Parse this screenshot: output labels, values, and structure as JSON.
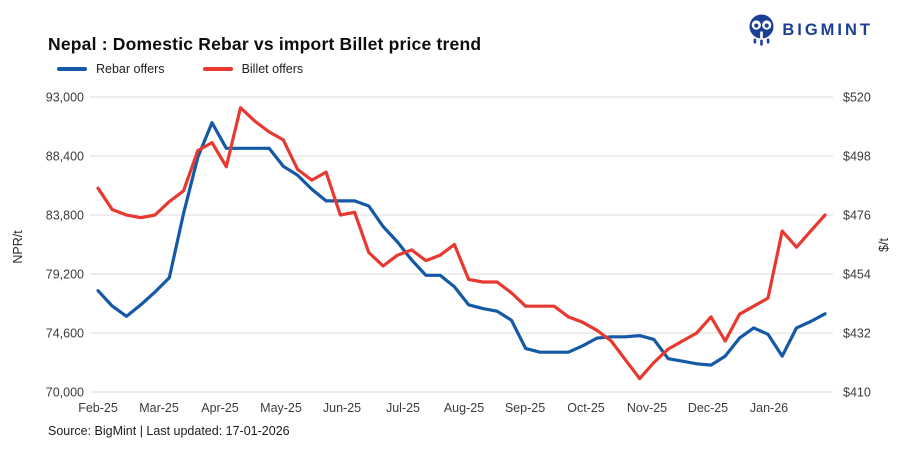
{
  "header": {
    "title": "Nepal : Domestic Rebar vs import Billet price trend",
    "logo_text": "BIGMINT"
  },
  "footer": {
    "source": "Source: BigMint | Last updated: 17-01-2026"
  },
  "colors": {
    "rebar_line": "#1459a6",
    "billet_line": "#e73930",
    "logo_navy": "#1c3f94",
    "gridline": "#e2e2e2",
    "tick_text": "#3c3c3c"
  },
  "chart_data": {
    "type": "line",
    "title": "Nepal : Domestic Rebar vs import Billet price trend",
    "x_labels": [
      "Feb-25",
      "Mar-25",
      "Apr-25",
      "May-25",
      "Jun-25",
      "Jul-25",
      "Aug-25",
      "Sep-25",
      "Oct-25",
      "Nov-25",
      "Dec-25",
      "Jan-26"
    ],
    "x_unit": "weekly points, Feb-2025 through mid-Jan-2026",
    "grid": "horizontal only",
    "legend_position": "top-left",
    "axes": {
      "left": {
        "label": "NPR/t",
        "min": 70000,
        "max": 93000,
        "ticks": [
          "93,000",
          "88,400",
          "83,800",
          "79,200",
          "74,600",
          "70,000"
        ]
      },
      "right": {
        "label": "$/t",
        "min": 410,
        "max": 520,
        "ticks": [
          "$520",
          "$498",
          "$476",
          "$454",
          "$432",
          "$410"
        ]
      }
    },
    "series": [
      {
        "name": "Rebar offers",
        "axis": "left",
        "color": "#1459a6",
        "values": [
          77900,
          76700,
          75900,
          76800,
          77800,
          78900,
          83900,
          88300,
          91000,
          89000,
          89000,
          89000,
          89000,
          87600,
          86900,
          85800,
          84900,
          84900,
          84900,
          84500,
          82900,
          81700,
          80300,
          79100,
          79100,
          78200,
          76800,
          76500,
          76300,
          75600,
          73400,
          73100,
          73100,
          73100,
          73600,
          74200,
          74300,
          74300,
          74400,
          74100,
          72600,
          72400,
          72200,
          72100,
          72800,
          74200,
          75000,
          74500,
          72800,
          75000,
          75500,
          76100
        ]
      },
      {
        "name": "Billet offers",
        "axis": "right",
        "color": "#e73930",
        "values": [
          486,
          478,
          476,
          475,
          476,
          481,
          485,
          500,
          503,
          494,
          516,
          511,
          507,
          504,
          493,
          489,
          492,
          476,
          477,
          462,
          457,
          461,
          463,
          459,
          461,
          465,
          452,
          451,
          451,
          447,
          442,
          442,
          442,
          438,
          436,
          433,
          429,
          422,
          415,
          421,
          426,
          429,
          432,
          438,
          429,
          439,
          442,
          445,
          470,
          464,
          470,
          476
        ]
      }
    ]
  }
}
